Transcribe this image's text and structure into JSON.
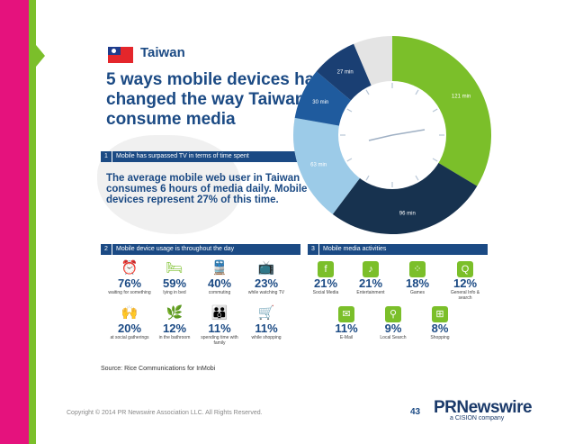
{
  "country": "Taiwan",
  "headline": "5 ways mobile devices have changed the way Taiwan consume media",
  "section1": {
    "num": "1",
    "title": "Mobile has surpassed TV in terms of time spent"
  },
  "description": "The average mobile web user in Taiwan consumes 6 hours of media daily. Mobile devices represent 27% of this time.",
  "clock": {
    "segments": [
      {
        "label": "121 min",
        "minutes": 121,
        "color": "#7bbf2a"
      },
      {
        "label": "96 min",
        "minutes": 96,
        "color": "#17324f"
      },
      {
        "label": "63 min",
        "minutes": 63,
        "color": "#9ccbe8"
      },
      {
        "label": "30 min",
        "minutes": 30,
        "color": "#1f5b9e"
      },
      {
        "label": "27 min",
        "minutes": 27,
        "color": "#1a3f73"
      }
    ]
  },
  "section2": {
    "num": "2",
    "title": "Mobile device usage is throughout the day",
    "items": [
      {
        "pct": "76%",
        "label": "waiting for something",
        "icon": "⏰"
      },
      {
        "pct": "59%",
        "label": "lying in bed",
        "icon": "🛏"
      },
      {
        "pct": "40%",
        "label": "commuting",
        "icon": "🚆"
      },
      {
        "pct": "23%",
        "label": "while watching TV",
        "icon": "📺"
      },
      {
        "pct": "20%",
        "label": "at social gatherings",
        "icon": "🙌"
      },
      {
        "pct": "12%",
        "label": "in the bathroom",
        "icon": "🌿"
      },
      {
        "pct": "11%",
        "label": "spending time with family",
        "icon": "👪"
      },
      {
        "pct": "11%",
        "label": "while shopping",
        "icon": "🛒"
      }
    ]
  },
  "section3": {
    "num": "3",
    "title": "Mobile media activities",
    "items": [
      {
        "pct": "21%",
        "label": "Social Media",
        "icon": "f"
      },
      {
        "pct": "21%",
        "label": "Entertainment",
        "icon": "♪"
      },
      {
        "pct": "18%",
        "label": "Games",
        "icon": "⁘"
      },
      {
        "pct": "12%",
        "label": "General Info & search",
        "icon": "Q"
      },
      {
        "pct": "11%",
        "label": "E-Mail",
        "icon": "✉"
      },
      {
        "pct": "9%",
        "label": "Local Search",
        "icon": "⚲"
      },
      {
        "pct": "8%",
        "label": "Shopping",
        "icon": "⊞"
      }
    ]
  },
  "source": "Source: Rice Communications for InMobi",
  "copyright": "Copyright © 2014 PR Newswire Association LLC. All Rights Reserved.",
  "page_number": "43",
  "brand": {
    "name": "PRNewswire",
    "tagline": "a CISION company"
  }
}
